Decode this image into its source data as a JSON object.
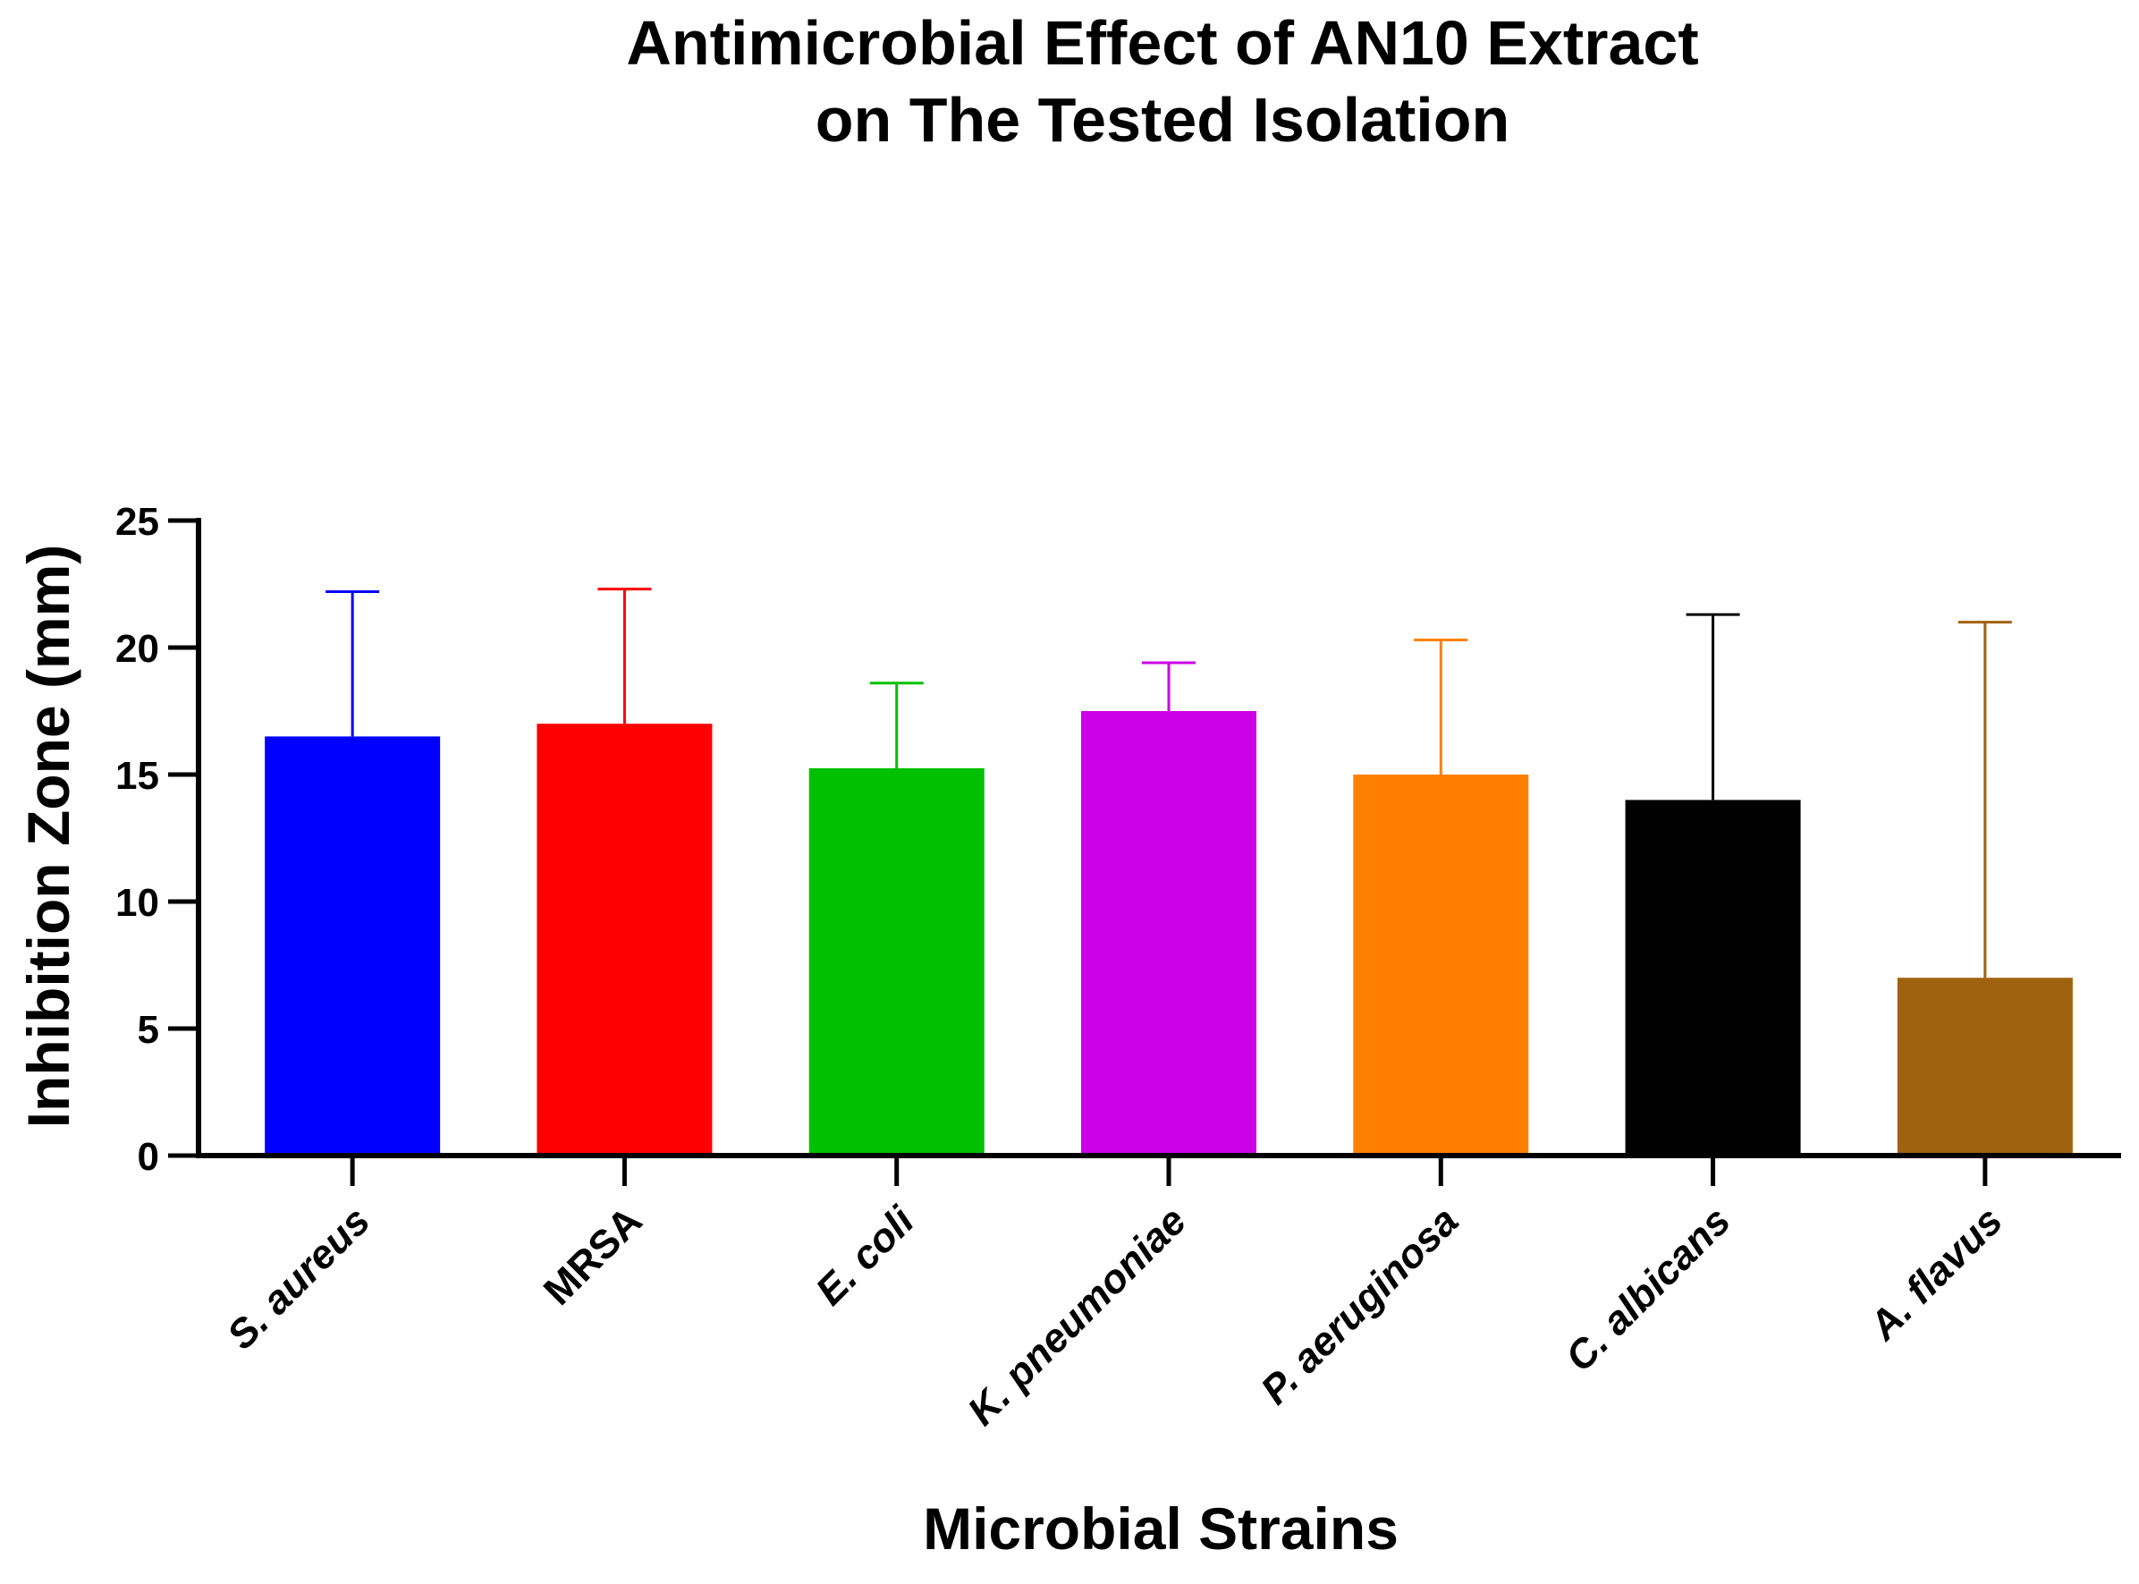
{
  "chart_data": {
    "type": "bar",
    "title_lines": [
      "Antimicrobial Effect of AN10 Extract",
      "on The Tested Isolation"
    ],
    "xlabel": "Microbial Strains",
    "ylabel": "Inhibition Zone (mm)",
    "ylim": [
      0,
      25
    ],
    "yticks": [
      0,
      5,
      10,
      15,
      20,
      25
    ],
    "ytick_labels": [
      "0",
      "5",
      "10",
      "15",
      "20",
      "25"
    ],
    "grid": false,
    "categories": [
      "S. aureus",
      "MRSA",
      "E. coli",
      "K. pneumoniae",
      "P. aeruginosa",
      "C. albicans",
      "A. flavus"
    ],
    "italic": [
      true,
      false,
      true,
      true,
      true,
      true,
      true
    ],
    "values": [
      16.5,
      17.0,
      15.25,
      17.5,
      15.0,
      14.0,
      7.0
    ],
    "error_upper": [
      22.2,
      22.3,
      18.6,
      19.4,
      20.3,
      21.3,
      21.0
    ],
    "colors": [
      "#0000FF",
      "#FF0000",
      "#00C000",
      "#CC00E6",
      "#FF8000",
      "#000000",
      "#A0620F"
    ]
  }
}
